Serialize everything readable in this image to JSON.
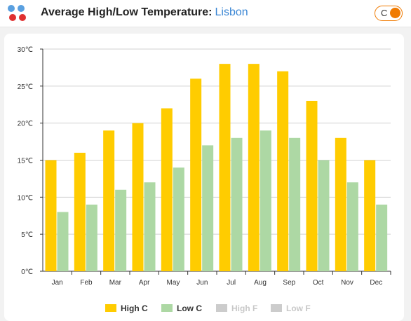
{
  "header": {
    "title": "Average High/Low Temperature:",
    "city": "Lisbon",
    "unit_toggle_label": "C"
  },
  "colors": {
    "high_c": "#ffcc00",
    "low_c": "#add8a4",
    "disabled": "#cccccc",
    "accent": "#f07a00",
    "link": "#3a86d4"
  },
  "legend": [
    {
      "label": "High C",
      "active": true
    },
    {
      "label": "Low C",
      "active": true
    },
    {
      "label": "High F",
      "active": false
    },
    {
      "label": "Low F",
      "active": false
    }
  ],
  "chart_data": {
    "type": "bar",
    "categories": [
      "Jan",
      "Feb",
      "Mar",
      "Apr",
      "May",
      "Jun",
      "Jul",
      "Aug",
      "Sep",
      "Oct",
      "Nov",
      "Dec"
    ],
    "series": [
      {
        "name": "High C",
        "values": [
          15,
          16,
          19,
          20,
          22,
          26,
          28,
          28,
          27,
          23,
          18,
          15
        ]
      },
      {
        "name": "Low C",
        "values": [
          8,
          9,
          11,
          12,
          14,
          17,
          18,
          19,
          18,
          15,
          12,
          9
        ]
      }
    ],
    "ylim": [
      0,
      30
    ],
    "yticks": [
      "0℃",
      "5℃",
      "10℃",
      "15℃",
      "20℃",
      "25℃",
      "30℃"
    ],
    "grid": true,
    "legend_position": "bottom"
  }
}
